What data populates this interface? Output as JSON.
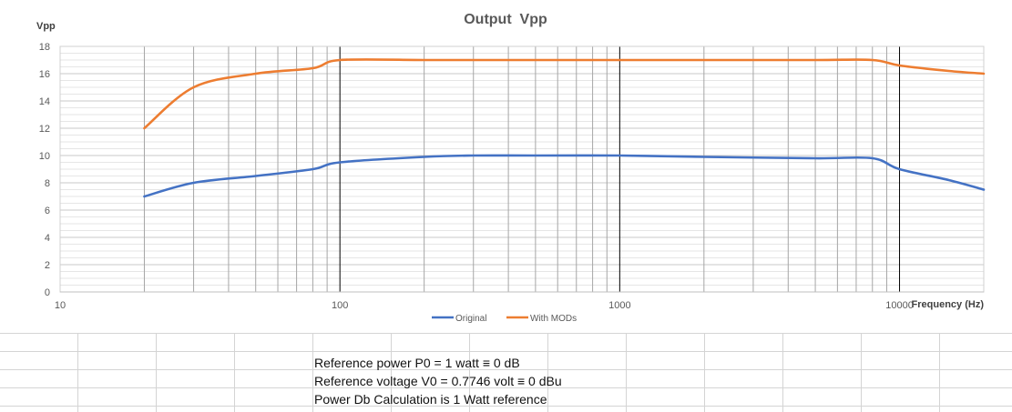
{
  "chart_data": {
    "type": "line",
    "title": "Output  Vpp",
    "ylabel": "Vpp",
    "xlabel": "Frequency (Hz)",
    "x_scale": "log",
    "xlim": [
      10,
      20000
    ],
    "ylim": [
      0,
      18
    ],
    "x_ticks": [
      10,
      100,
      1000,
      10000
    ],
    "y_ticks": [
      0,
      2,
      4,
      6,
      8,
      10,
      12,
      14,
      16,
      18
    ],
    "grid": true,
    "legend": "bottom",
    "series": [
      {
        "name": "Original",
        "color": "#4472C4",
        "points": [
          [
            20,
            7
          ],
          [
            30,
            8
          ],
          [
            50,
            8.5
          ],
          [
            80,
            9
          ],
          [
            100,
            9.5
          ],
          [
            200,
            9.9
          ],
          [
            300,
            10
          ],
          [
            500,
            10
          ],
          [
            1000,
            10
          ],
          [
            2000,
            9.9
          ],
          [
            5000,
            9.8
          ],
          [
            8000,
            9.8
          ],
          [
            10000,
            9
          ],
          [
            15000,
            8.2
          ],
          [
            20000,
            7.5
          ]
        ]
      },
      {
        "name": "With MODs",
        "color": "#ED7D31",
        "points": [
          [
            20,
            12
          ],
          [
            30,
            15
          ],
          [
            50,
            16
          ],
          [
            80,
            16.4
          ],
          [
            100,
            17
          ],
          [
            200,
            17
          ],
          [
            300,
            17
          ],
          [
            500,
            17
          ],
          [
            1000,
            17
          ],
          [
            2000,
            17
          ],
          [
            5000,
            17
          ],
          [
            8000,
            17
          ],
          [
            10000,
            16.6
          ],
          [
            15000,
            16.2
          ],
          [
            20000,
            16
          ]
        ]
      }
    ]
  },
  "sheet": {
    "notes": [
      "Reference power P0 = 1 watt ≡ 0 dB",
      "Reference voltage V0 = 0.7746 volt ≡ 0 dBu",
      "Power Db Calculation is 1 Watt reference"
    ]
  }
}
